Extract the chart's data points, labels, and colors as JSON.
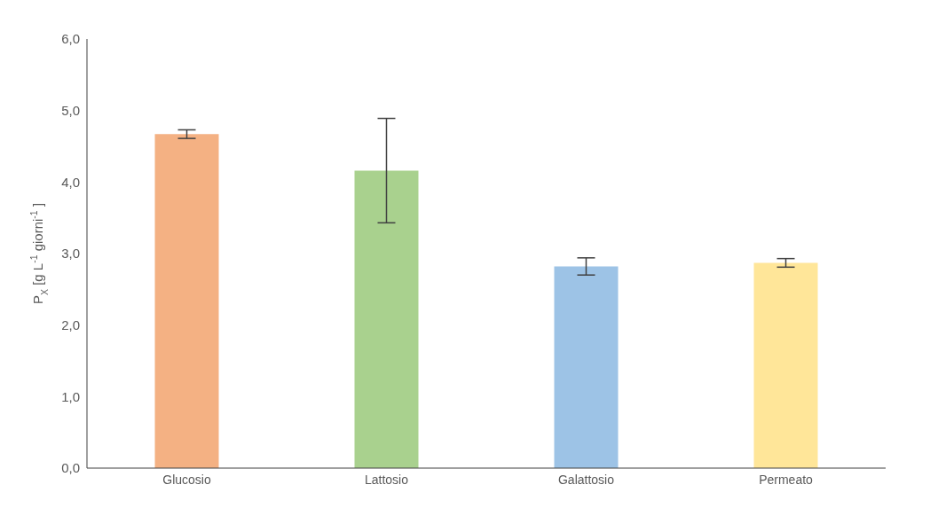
{
  "chart_data": {
    "type": "bar",
    "ylabel": "P$_{X}$ [g L$^{-1}$ giorni$^{-1}$]",
    "categories": [
      "Glucosio",
      "Lattosio",
      "Galattosio",
      "Permeato"
    ],
    "values": [
      4.67,
      4.16,
      2.82,
      2.87
    ],
    "errors": [
      0.06,
      0.73,
      0.12,
      0.06
    ],
    "colors": [
      "#f4b183",
      "#a9d18e",
      "#9dc3e6",
      "#ffe699"
    ],
    "ylim": [
      0,
      6
    ],
    "yticks": [
      {
        "value": 0,
        "label": "0,0"
      },
      {
        "value": 1,
        "label": "1,0"
      },
      {
        "value": 2,
        "label": "2,0"
      },
      {
        "value": 3,
        "label": "3,0"
      },
      {
        "value": 4,
        "label": "4,0"
      },
      {
        "value": 5,
        "label": "5,0"
      },
      {
        "value": 6,
        "label": "6,0"
      }
    ],
    "grid": false
  }
}
